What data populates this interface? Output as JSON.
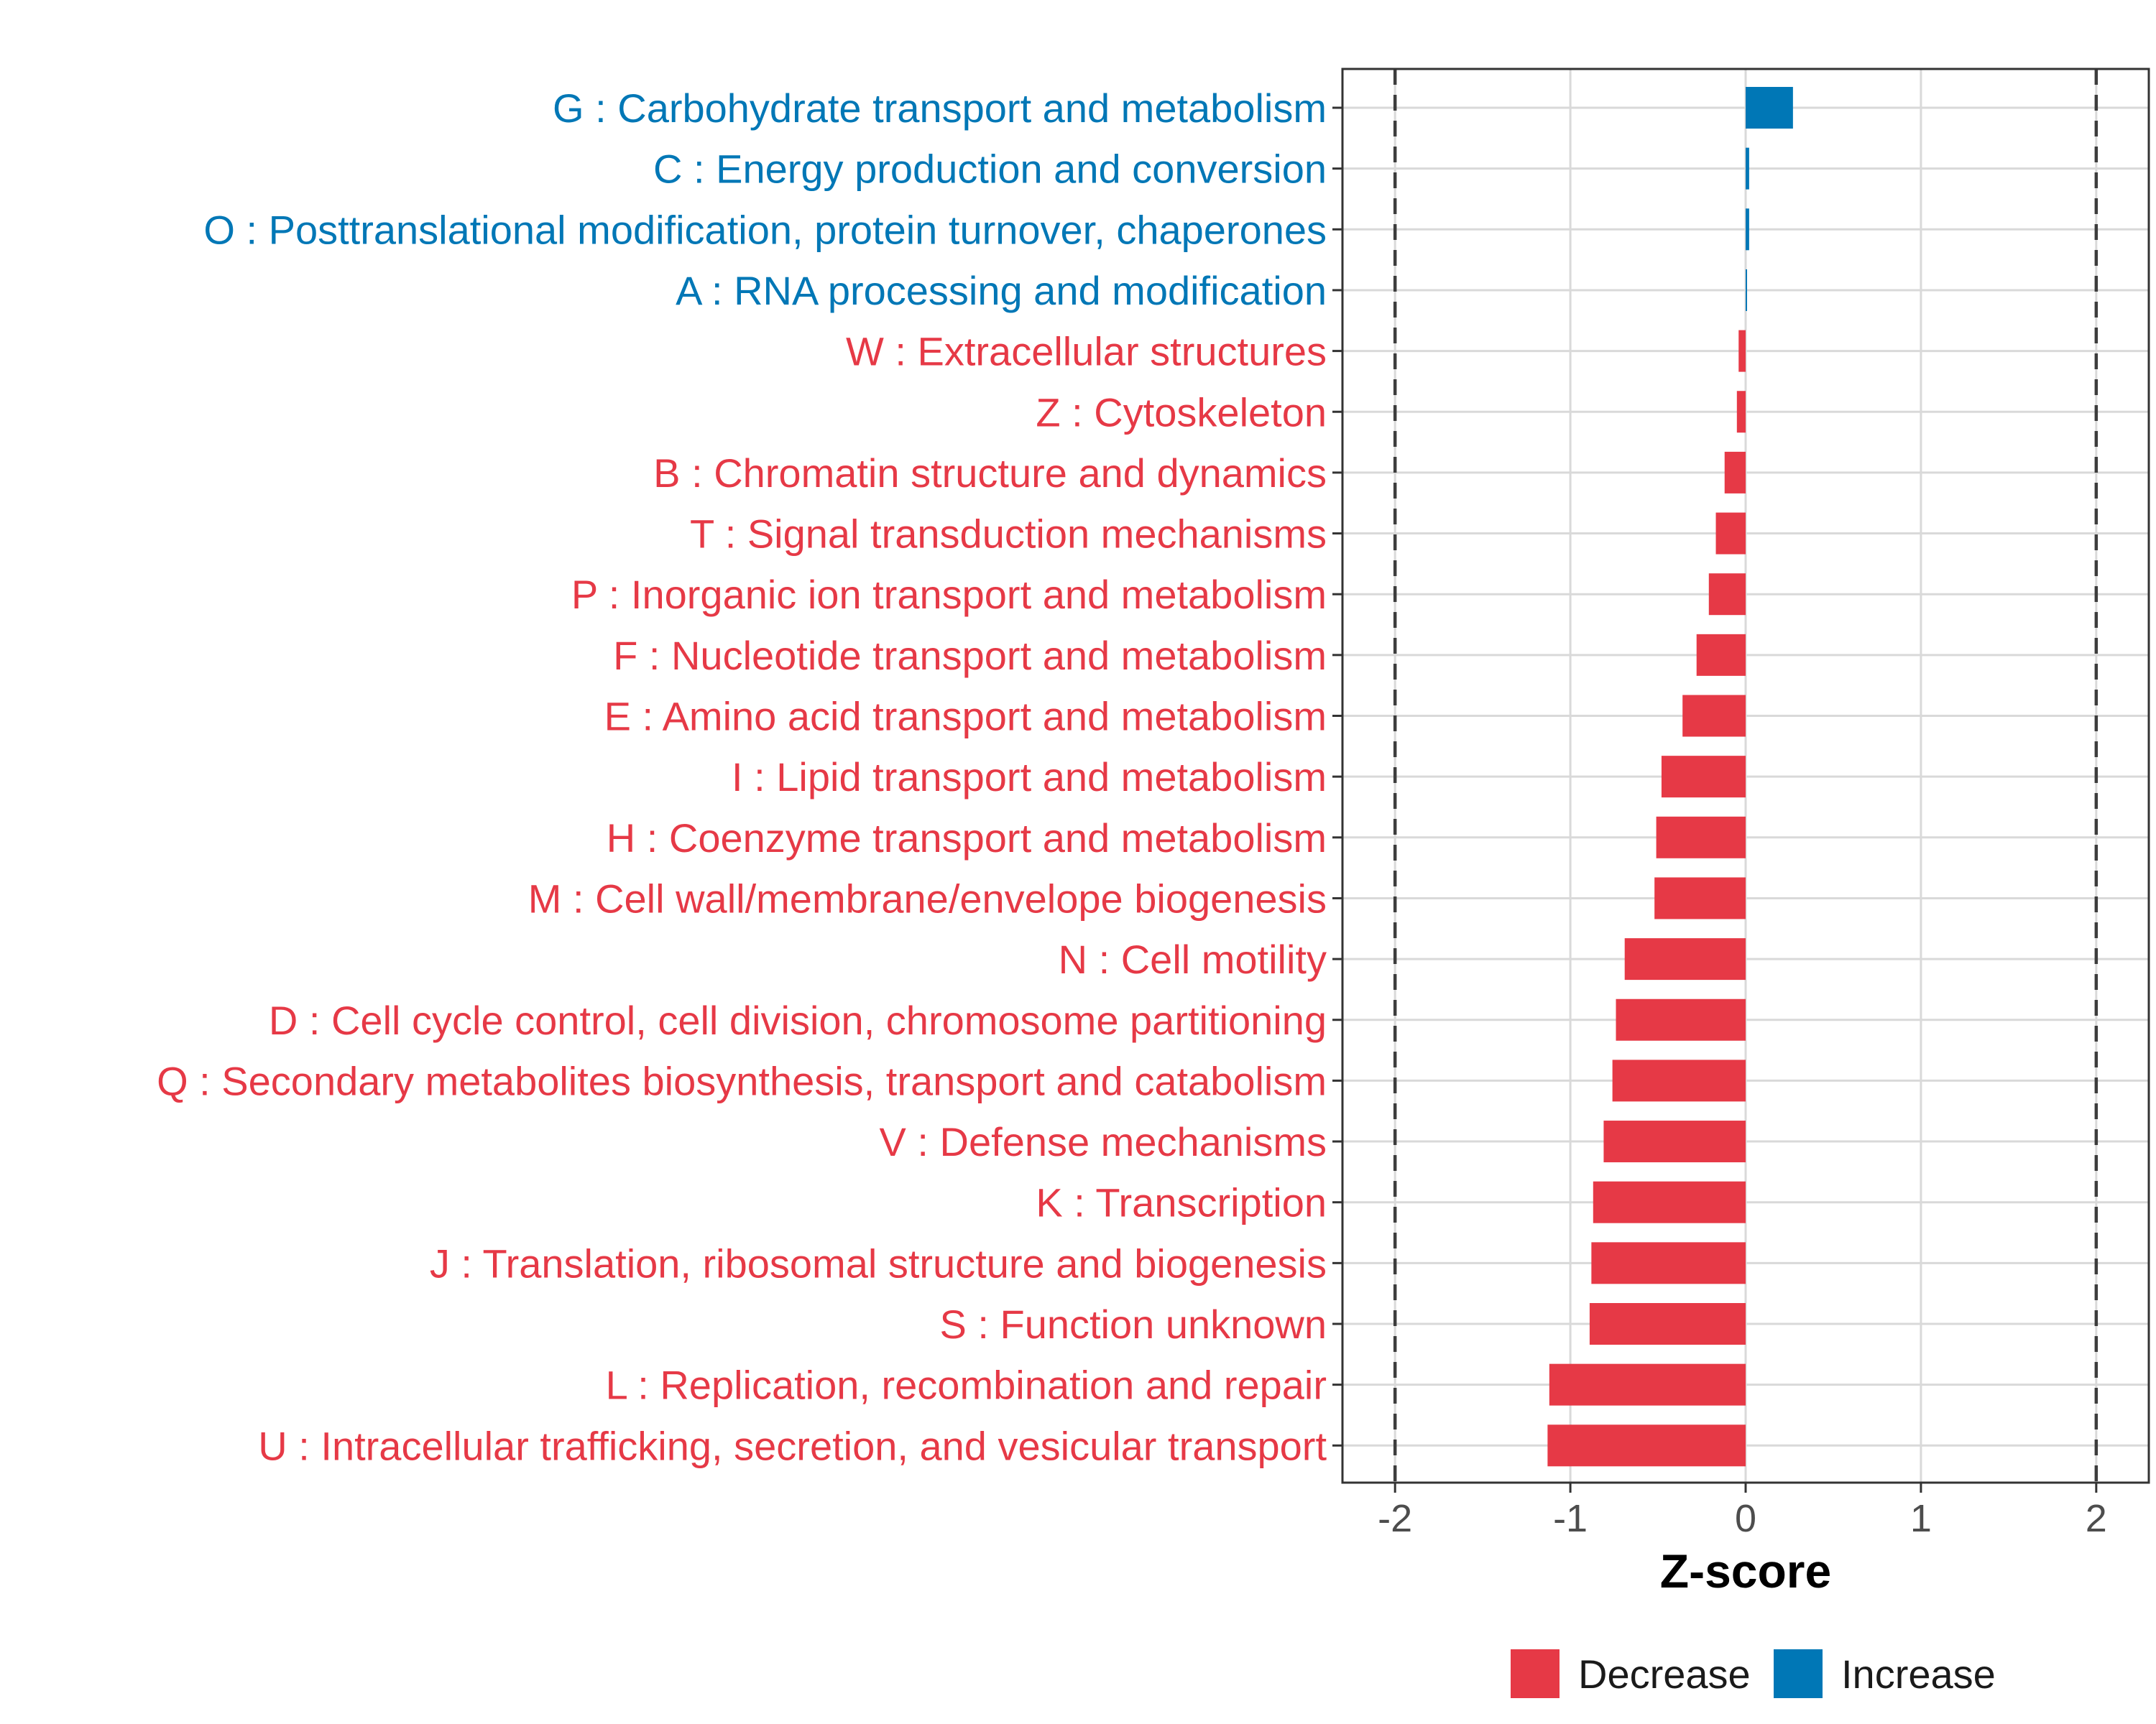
{
  "chart_data": {
    "type": "bar",
    "orientation": "horizontal",
    "xlabel": "Z-score",
    "xlim": [
      -2.3,
      2.3
    ],
    "xticks": [
      -2,
      -1,
      0,
      1,
      2
    ],
    "xtick_labels": [
      "-2",
      "-1",
      "0",
      "1",
      "2"
    ],
    "reference_lines": [
      -2,
      2
    ],
    "grid": true,
    "legend_position": "bottom",
    "colors": {
      "Decrease": "#E63946",
      "Increase": "#0077B6"
    },
    "categories": [
      {
        "label": "G : Carbohydrate transport and metabolism",
        "value": 0.27,
        "group": "Increase"
      },
      {
        "label": "C : Energy production and conversion",
        "value": 0.02,
        "group": "Increase"
      },
      {
        "label": "O : Posttranslational modification, protein turnover, chaperones",
        "value": 0.02,
        "group": "Increase"
      },
      {
        "label": "A : RNA processing and modification",
        "value": 0.005,
        "group": "Increase"
      },
      {
        "label": "W : Extracellular structures",
        "value": -0.04,
        "group": "Decrease"
      },
      {
        "label": "Z : Cytoskeleton",
        "value": -0.05,
        "group": "Decrease"
      },
      {
        "label": "B : Chromatin structure and dynamics",
        "value": -0.12,
        "group": "Decrease"
      },
      {
        "label": "T : Signal transduction mechanisms",
        "value": -0.17,
        "group": "Decrease"
      },
      {
        "label": "P : Inorganic ion transport and metabolism",
        "value": -0.21,
        "group": "Decrease"
      },
      {
        "label": "F : Nucleotide transport and metabolism",
        "value": -0.28,
        "group": "Decrease"
      },
      {
        "label": "E : Amino acid transport and metabolism",
        "value": -0.36,
        "group": "Decrease"
      },
      {
        "label": "I : Lipid transport and metabolism",
        "value": -0.48,
        "group": "Decrease"
      },
      {
        "label": "H : Coenzyme transport and metabolism",
        "value": -0.51,
        "group": "Decrease"
      },
      {
        "label": "M : Cell wall/membrane/envelope biogenesis",
        "value": -0.52,
        "group": "Decrease"
      },
      {
        "label": "N : Cell motility",
        "value": -0.69,
        "group": "Decrease"
      },
      {
        "label": "D : Cell cycle control, cell division, chromosome partitioning",
        "value": -0.74,
        "group": "Decrease"
      },
      {
        "label": "Q : Secondary metabolites biosynthesis, transport and catabolism",
        "value": -0.76,
        "group": "Decrease"
      },
      {
        "label": "V : Defense mechanisms",
        "value": -0.81,
        "group": "Decrease"
      },
      {
        "label": "K : Transcription",
        "value": -0.87,
        "group": "Decrease"
      },
      {
        "label": "J : Translation, ribosomal structure and biogenesis",
        "value": -0.88,
        "group": "Decrease"
      },
      {
        "label": "S : Function unknown",
        "value": -0.89,
        "group": "Decrease"
      },
      {
        "label": "L : Replication, recombination and repair",
        "value": -1.12,
        "group": "Decrease"
      },
      {
        "label": "U : Intracellular trafficking, secretion, and vesicular transport",
        "value": -1.13,
        "group": "Decrease"
      }
    ],
    "legend": [
      {
        "label": "Decrease",
        "color": "#E63946"
      },
      {
        "label": "Increase",
        "color": "#0077B6"
      }
    ]
  }
}
